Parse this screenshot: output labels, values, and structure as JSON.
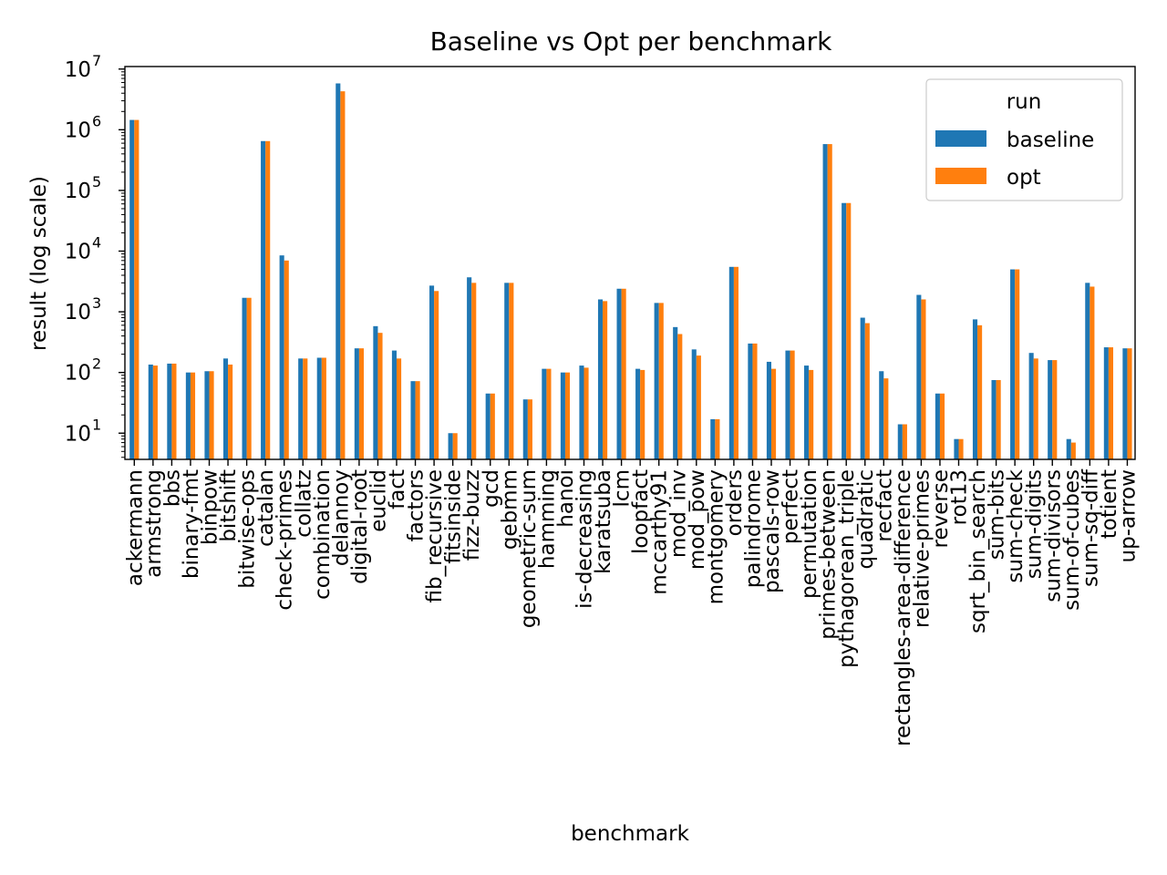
{
  "chart_data": {
    "type": "bar",
    "title": "Baseline vs Opt per benchmark",
    "xlabel": "benchmark",
    "ylabel": "result (log scale)",
    "yscale": "log",
    "ylim": [
      3.7,
      11000000
    ],
    "y_ticks": [
      {
        "base": "10",
        "exp": "1",
        "value": 10
      },
      {
        "base": "10",
        "exp": "2",
        "value": 100
      },
      {
        "base": "10",
        "exp": "3",
        "value": 1000
      },
      {
        "base": "10",
        "exp": "4",
        "value": 10000
      },
      {
        "base": "10",
        "exp": "5",
        "value": 100000
      },
      {
        "base": "10",
        "exp": "6",
        "value": 1000000
      },
      {
        "base": "10",
        "exp": "7",
        "value": 10000000
      }
    ],
    "grid": false,
    "legend": {
      "title": "run",
      "placement": "top-right"
    },
    "categories": [
      "ackermann",
      "armstrong",
      "bbs",
      "binary-fmt",
      "binpow",
      "bitshift",
      "bitwise-ops",
      "catalan",
      "check-primes",
      "collatz",
      "combination",
      "delannoy",
      "digital-root",
      "euclid",
      "fact",
      "factors",
      "fib_recursive",
      "fitsinside",
      "fizz-buzz",
      "gcd",
      "gebmm",
      "geometric-sum",
      "hamming",
      "hanoi",
      "is-decreasing",
      "karatsuba",
      "lcm",
      "loopfact",
      "mccarthy91",
      "mod_inv",
      "mod_pow",
      "montgomery",
      "orders",
      "palindrome",
      "pascals-row",
      "perfect",
      "permutation",
      "primes-between",
      "pythagorean_triple",
      "quadratic",
      "recfact",
      "rectangles-area-difference",
      "relative-primes",
      "reverse",
      "rot13",
      "sqrt_bin_search",
      "sum-bits",
      "sum-check",
      "sum-digits",
      "sum-divisors",
      "sum-of-cubes",
      "sum-sq-diff",
      "totient",
      "up-arrow"
    ],
    "series": [
      {
        "name": "baseline",
        "color": "#1f77b4",
        "values": [
          1450000,
          135,
          140,
          100,
          105,
          170,
          1700,
          650000,
          8500,
          170,
          175,
          5800000,
          250,
          580,
          230,
          72,
          2700,
          10,
          3700,
          45,
          3000,
          36,
          115,
          100,
          130,
          1600,
          2400,
          115,
          1400,
          560,
          240,
          17,
          5500,
          300,
          150,
          230,
          130,
          580000,
          62000,
          800,
          105,
          14,
          1900,
          45,
          8,
          750,
          75,
          5000,
          210,
          160,
          8,
          3000,
          260,
          250
        ]
      },
      {
        "name": "opt",
        "color": "#ff7f0e",
        "values": [
          1450000,
          130,
          140,
          100,
          105,
          135,
          1700,
          650000,
          7000,
          170,
          175,
          4300000,
          250,
          450,
          170,
          72,
          2200,
          10,
          3000,
          45,
          3000,
          36,
          115,
          100,
          120,
          1500,
          2400,
          110,
          1400,
          430,
          190,
          17,
          5500,
          300,
          115,
          230,
          110,
          580000,
          62000,
          650,
          80,
          14,
          1600,
          45,
          8,
          600,
          75,
          5000,
          170,
          160,
          7,
          2600,
          260,
          250
        ]
      }
    ]
  }
}
